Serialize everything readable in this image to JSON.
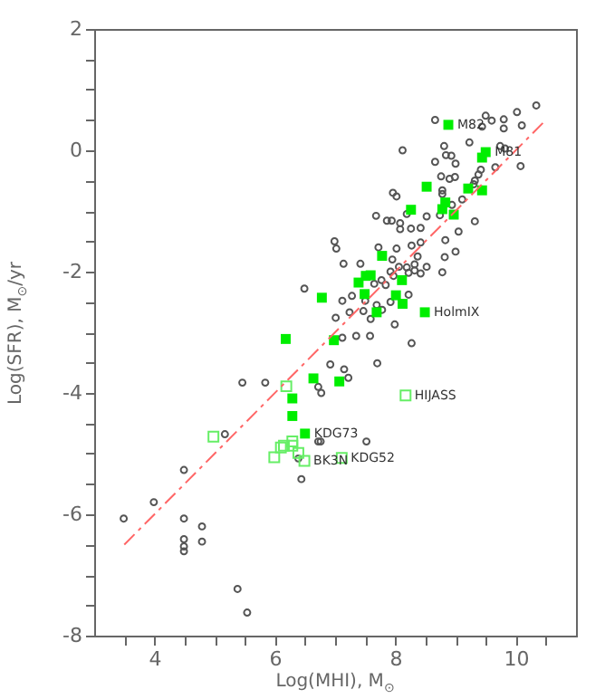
{
  "chart_data": {
    "type": "scatter",
    "xlabel": "Log(MHI), M$_{⊙}$",
    "ylabel": "Log(SFR), M$_{⊙}$/yr",
    "xlim": [
      3,
      11
    ],
    "ylim": [
      -8,
      2
    ],
    "xticks": [
      {
        "value": 3.5,
        "label": null
      },
      4,
      {
        "value": 4.5,
        "label": null
      },
      {
        "value": 5,
        "label": null
      },
      {
        "value": 5.5,
        "label": null
      },
      6,
      {
        "value": 6.5,
        "label": null
      },
      {
        "value": 7,
        "label": null
      },
      {
        "value": 7.5,
        "label": null
      },
      8,
      {
        "value": 8.5,
        "label": null
      },
      {
        "value": 9,
        "label": null
      },
      {
        "value": 9.5,
        "label": null
      },
      10,
      {
        "value": 10.5,
        "label": null
      }
    ],
    "yticks": [
      -8,
      {
        "value": -7.5,
        "label": null
      },
      {
        "value": -7,
        "label": null
      },
      {
        "value": -6.5,
        "label": null
      },
      -6,
      {
        "value": -5.5,
        "label": null
      },
      {
        "value": -5,
        "label": null
      },
      {
        "value": -4.5,
        "label": null
      },
      -4,
      {
        "value": -3.5,
        "label": null
      },
      {
        "value": -3,
        "label": null
      },
      {
        "value": -2.5,
        "label": null
      },
      -2,
      {
        "value": -1.5,
        "label": null
      },
      {
        "value": -1,
        "label": null
      },
      {
        "value": -0.5,
        "label": null
      },
      0,
      {
        "value": 0.5,
        "label": null
      },
      {
        "value": 1,
        "label": null
      },
      {
        "value": 1.5,
        "label": null
      },
      2
    ],
    "grid": false,
    "series": [
      {
        "marker": "circle",
        "color": "#555555",
        "x": [
          8.66,
          9.5,
          9.6,
          9.8,
          10.02,
          10.34,
          9.44,
          9.8,
          10.1,
          8.12,
          8.81,
          8.84,
          8.93,
          9.23,
          9.74,
          9.82,
          8.66,
          9.0,
          9.66,
          10.08,
          9.42,
          9.38,
          8.76,
          8.9,
          8.99,
          9.32,
          9.3,
          7.96,
          8.02,
          8.78,
          8.78,
          9.11,
          8.19,
          7.68,
          7.86,
          7.94,
          8.08,
          8.08,
          8.26,
          8.42,
          8.52,
          8.74,
          8.94,
          9.05,
          9.32,
          6.99,
          7.02,
          7.72,
          8.42,
          8.83,
          9.0,
          7.14,
          7.42,
          8.02,
          7.95,
          8.27,
          8.37,
          8.06,
          8.19,
          8.32,
          8.52,
          8.78,
          8.82,
          7.92,
          7.97,
          8.22,
          8.32,
          8.42,
          7.65,
          7.77,
          7.84,
          6.49,
          7.12,
          7.28,
          7.5,
          7.69,
          7.78,
          7.92,
          8.22,
          7.24,
          7.47,
          7.59,
          7.01,
          7.99,
          7.12,
          7.35,
          7.58,
          8.27,
          6.92,
          7.15,
          7.7,
          7.22,
          5.46,
          5.84,
          6.72,
          6.77,
          6.72,
          6.76,
          7.52,
          5.17,
          6.39,
          6.44,
          4.49,
          3.99,
          3.49,
          4.49,
          4.79,
          4.49,
          4.79,
          4.49,
          4.49,
          5.38,
          5.54
        ],
        "values": [
          0.5,
          0.57,
          0.49,
          0.51,
          0.63,
          0.74,
          0.39,
          0.36,
          0.41,
          0.0,
          0.07,
          -0.08,
          -0.09,
          0.13,
          0.07,
          0.03,
          -0.19,
          -0.22,
          -0.28,
          -0.26,
          -0.32,
          -0.4,
          -0.43,
          -0.47,
          -0.44,
          -0.5,
          -0.56,
          -0.7,
          -0.76,
          -0.66,
          -0.72,
          -0.81,
          -1.05,
          -1.08,
          -1.16,
          -1.16,
          -1.2,
          -1.3,
          -1.29,
          -1.28,
          -1.09,
          -1.07,
          -0.9,
          -1.34,
          -1.17,
          -1.5,
          -1.62,
          -1.6,
          -1.52,
          -1.48,
          -1.67,
          -1.87,
          -1.87,
          -1.62,
          -1.8,
          -1.57,
          -1.75,
          -1.92,
          -1.93,
          -1.88,
          -1.92,
          -2.01,
          -1.76,
          -2.0,
          -2.07,
          -2.02,
          -1.98,
          -2.03,
          -2.2,
          -2.14,
          -2.22,
          -2.28,
          -2.48,
          -2.4,
          -2.48,
          -2.55,
          -2.63,
          -2.5,
          -2.38,
          -2.67,
          -2.65,
          -2.78,
          -2.76,
          -2.87,
          -3.09,
          -3.06,
          -3.06,
          -3.18,
          -3.53,
          -3.61,
          -3.51,
          -3.75,
          -3.83,
          -3.83,
          -3.9,
          -4.0,
          -4.8,
          -4.8,
          -4.8,
          -4.68,
          -5.08,
          -5.42,
          -5.27,
          -5.8,
          -6.07,
          -6.07,
          -6.2,
          -6.41,
          -6.45,
          -6.53,
          -6.61,
          -7.23,
          -7.62
        ]
      },
      {
        "marker": "square",
        "color": "#00ee00",
        "x": [
          8.88,
          9.5,
          9.44,
          8.52,
          9.21,
          9.44,
          8.26,
          8.83,
          8.78,
          8.97,
          7.78,
          7.39,
          7.51,
          7.59,
          8.11,
          6.78,
          7.49,
          8.01,
          8.12,
          7.69,
          8.49,
          6.18,
          6.98,
          6.64,
          7.07,
          6.29,
          6.29,
          6.5
        ],
        "values": [
          0.42,
          -0.03,
          -0.12,
          -0.6,
          -0.63,
          -0.66,
          -0.98,
          -0.86,
          -0.97,
          -1.06,
          -1.74,
          -2.18,
          -2.07,
          -2.06,
          -2.14,
          -2.43,
          -2.37,
          -2.39,
          -2.53,
          -2.67,
          -2.67,
          -3.11,
          -3.13,
          -3.76,
          -3.81,
          -4.09,
          -4.38,
          -4.67
        ]
      },
      {
        "marker": "square",
        "color": "#66ee66",
        "x": [
          6.19,
          8.17,
          4.98,
          6.29,
          6.29,
          6.1,
          6.15,
          5.99,
          6.39,
          6.49,
          7.11
        ],
        "values": [
          -3.89,
          -4.04,
          -4.72,
          -4.8,
          -4.87,
          -4.9,
          -4.87,
          -5.06,
          -4.99,
          -5.12,
          -5.07
        ]
      },
      {
        "type": "line",
        "line_style": "dashed",
        "color": "#ff6666",
        "x": [
          3.5,
          10.5
        ],
        "values": [
          -6.5,
          0.5
        ]
      }
    ],
    "annotations": [
      {
        "text": "M82",
        "x": 8.88,
        "y": 0.42
      },
      {
        "text": "M81",
        "x": 9.5,
        "y": -0.03
      },
      {
        "text": "HolmIX",
        "x": 8.49,
        "y": -2.67
      },
      {
        "text": "HIJASS",
        "x": 8.17,
        "y": -4.04
      },
      {
        "text": "KDG73",
        "x": 6.5,
        "y": -4.67
      },
      {
        "text": "BK3N",
        "x": 6.49,
        "y": -5.12
      },
      {
        "text": "KDG52",
        "x": 7.11,
        "y": -5.07
      }
    ]
  }
}
